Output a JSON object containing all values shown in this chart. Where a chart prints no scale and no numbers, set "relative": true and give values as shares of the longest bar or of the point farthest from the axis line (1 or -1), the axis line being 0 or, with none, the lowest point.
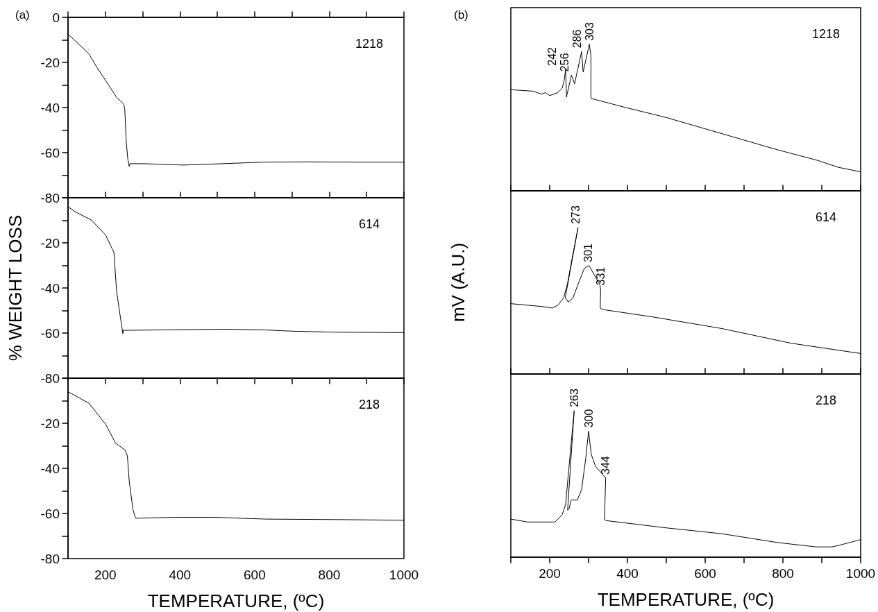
{
  "chart_data": [
    {
      "type": "line",
      "title": "(a)",
      "xlim": [
        100,
        1000
      ],
      "xticks": [
        {
          "value": 100,
          "label": null
        },
        200,
        {
          "value": 300,
          "label": null
        },
        400,
        {
          "value": 500,
          "label": null
        },
        600,
        {
          "value": 700,
          "label": null
        },
        800,
        {
          "value": 900,
          "label": null
        },
        1000
      ],
      "ylim": [
        -80,
        0
      ],
      "yticks": [
        0,
        {
          "value": -10,
          "label": null
        },
        -20,
        {
          "value": -30,
          "label": null
        },
        -40,
        {
          "value": -50,
          "label": null
        },
        -60,
        {
          "value": -70,
          "label": null
        },
        -80
      ],
      "tick_labels": "y",
      "marker": "none",
      "annotations": [
        "1218"
      ],
      "series": [
        {
          "color": "#000000",
          "x": [
            100,
            156,
            178,
            223,
            230,
            249,
            252,
            256,
            260,
            264,
            266,
            305,
            409,
            513,
            624,
            736,
            885,
            1000
          ],
          "values": [
            -7.4,
            -16.2,
            -22.3,
            -33.6,
            -35.5,
            -38.4,
            -40.5,
            -55,
            -62.6,
            -66.1,
            -64.9,
            -64.9,
            -65.5,
            -64.9,
            -64.2,
            -64.1,
            -64.2,
            -64.2
          ]
        }
      ]
    },
    {
      "type": "line",
      "ylabel": "% WEIGHT LOSS",
      "xlim": [
        100,
        1000
      ],
      "xticks": [
        {
          "value": 100,
          "label": null
        },
        200,
        {
          "value": 300,
          "label": null
        },
        400,
        {
          "value": 500,
          "label": null
        },
        600,
        {
          "value": 700,
          "label": null
        },
        800,
        {
          "value": 900,
          "label": null
        },
        1000
      ],
      "ylim": [
        -80,
        0
      ],
      "yticks": [
        {
          "value": 0,
          "label": null
        },
        {
          "value": -10,
          "label": null
        },
        -20,
        {
          "value": -30,
          "label": null
        },
        -40,
        {
          "value": -50,
          "label": null
        },
        -60,
        {
          "value": -70,
          "label": null
        },
        -80
      ],
      "tick_labels": "y",
      "marker": "none",
      "annotations": [
        "614"
      ],
      "series": [
        {
          "color": "#000000",
          "x": [
            100,
            119,
            163,
            201,
            219,
            223,
            230,
            241,
            247,
            248,
            349,
            513,
            624,
            706,
            811,
            1000
          ],
          "values": [
            -4.0,
            -6.2,
            -9.9,
            -16.6,
            -22.9,
            -24.2,
            -41.2,
            -53.8,
            -60.3,
            -58.8,
            -58.6,
            -58.3,
            -58.6,
            -59.2,
            -59.6,
            -59.8
          ]
        }
      ]
    },
    {
      "type": "line",
      "xlabel": "TEMPERATURE, (ºC)",
      "xlim": [
        100,
        1000
      ],
      "xticks": [
        {
          "value": 100,
          "label": null
        },
        200,
        {
          "value": 300,
          "label": null
        },
        400,
        {
          "value": 500,
          "label": null
        },
        600,
        {
          "value": 700,
          "label": null
        },
        800,
        {
          "value": 900,
          "label": null
        },
        1000
      ],
      "ylim": [
        -80,
        0
      ],
      "yticks": [
        {
          "value": 0,
          "label": null
        },
        {
          "value": -10,
          "label": null
        },
        -20,
        {
          "value": -30,
          "label": null
        },
        -40,
        {
          "value": -50,
          "label": null
        },
        -60,
        {
          "value": -70,
          "label": null
        },
        -80
      ],
      "marker": "none",
      "annotations": [
        "218"
      ],
      "series": [
        {
          "color": "#000000",
          "x": [
            100,
            156,
            201,
            227,
            253,
            259,
            264,
            274,
            281,
            394,
            491,
            632,
            811,
            1000
          ],
          "values": [
            -6.0,
            -11.1,
            -20.5,
            -28.7,
            -31.9,
            -34.4,
            -45.7,
            -58.3,
            -62.1,
            -61.7,
            -61.7,
            -62.5,
            -62.7,
            -63.0
          ]
        }
      ]
    },
    {
      "type": "line",
      "title": "(b)",
      "relative": true,
      "xlim": [
        100,
        1000
      ],
      "xticks": [
        {
          "value": 100,
          "label": null
        },
        200,
        {
          "value": 300,
          "label": null
        },
        400,
        {
          "value": 500,
          "label": null
        },
        600,
        {
          "value": 700,
          "label": null
        },
        800,
        {
          "value": 900,
          "label": null
        },
        1000
      ],
      "tick_labels": false,
      "marker": "none",
      "annotations": [
        "1218",
        {
          "text": "242",
          "x": 241,
          "y": 0.83
        },
        {
          "text": "256",
          "x": 256,
          "y": 0.79
        },
        {
          "text": "286",
          "x": 282,
          "y": 0.95
        },
        {
          "text": "303",
          "x": 302,
          "y": 1.0
        }
      ],
      "series": [
        {
          "color": "#000000",
          "x": [
            100,
            157,
            179,
            189,
            200,
            221,
            232,
            237,
            241,
            243,
            256,
            264,
            282,
            286,
            302,
            306,
            306,
            307,
            393,
            500,
            643,
            786,
            886,
            943,
            1000
          ],
          "values": [
            0.69,
            0.68,
            0.66,
            0.67,
            0.65,
            0.67,
            0.7,
            0.75,
            0.83,
            0.64,
            0.79,
            0.73,
            0.95,
            0.81,
            1.0,
            0.92,
            0.64,
            0.63,
            0.57,
            0.5,
            0.39,
            0.28,
            0.21,
            0.16,
            0.13
          ]
        }
      ]
    },
    {
      "type": "line",
      "ylabel": "mV (A.U.)",
      "relative": true,
      "xlim": [
        100,
        1000
      ],
      "xticks": [
        {
          "value": 100,
          "label": null
        },
        200,
        {
          "value": 300,
          "label": null
        },
        400,
        {
          "value": 500,
          "label": null
        },
        600,
        {
          "value": 700,
          "label": null
        },
        800,
        {
          "value": 900,
          "label": null
        },
        1000
      ],
      "tick_labels": false,
      "marker": "none",
      "annotations": [
        "614",
        {
          "text": "273",
          "x": 273,
          "y": 1.0
        },
        {
          "text": "301",
          "x": 301,
          "y": 0.74
        },
        {
          "text": "331",
          "x": 331,
          "y": 0.58
        }
      ],
      "series": [
        {
          "color": "#000000",
          "x": [
            100,
            182,
            207,
            221,
            236,
            246,
            257,
            273,
            240,
            243,
            248,
            260,
            274,
            289,
            301,
            314,
            329,
            331,
            330,
            336,
            464,
            643,
            821,
            1000
          ],
          "values": [
            0.48,
            0.46,
            0.45,
            0.47,
            0.52,
            0.62,
            0.78,
            1.0,
            0.52,
            0.51,
            0.49,
            0.52,
            0.62,
            0.72,
            0.74,
            0.68,
            0.61,
            0.58,
            0.45,
            0.44,
            0.39,
            0.31,
            0.21,
            0.14
          ]
        }
      ]
    },
    {
      "type": "line",
      "xlabel": "TEMPERATURE, (ºC)",
      "relative": true,
      "xlim": [
        100,
        1000
      ],
      "xticks": [
        {
          "value": 100,
          "label": null
        },
        200,
        {
          "value": 300,
          "label": null
        },
        400,
        {
          "value": 500,
          "label": null
        },
        600,
        {
          "value": 700,
          "label": null
        },
        800,
        {
          "value": 900,
          "label": null
        },
        1000
      ],
      "tick_labels": "x",
      "marker": "none",
      "annotations": [
        "218",
        {
          "text": "263",
          "x": 263,
          "y": 1.0
        },
        {
          "text": "300",
          "x": 300,
          "y": 0.86
        },
        {
          "text": "344",
          "x": 344,
          "y": 0.54
        }
      ],
      "series": [
        {
          "color": "#000000",
          "x": [
            100,
            143,
            214,
            232,
            241,
            246,
            263,
            246,
            250,
            255,
            271,
            282,
            293,
            300,
            307,
            318,
            341,
            344,
            341,
            344,
            500,
            643,
            786,
            886,
            925,
            943,
            1000
          ],
          "values": [
            0.26,
            0.24,
            0.24,
            0.29,
            0.36,
            0.51,
            1.0,
            0.32,
            0.33,
            0.39,
            0.39,
            0.46,
            0.68,
            0.86,
            0.7,
            0.62,
            0.55,
            0.54,
            0.26,
            0.25,
            0.2,
            0.16,
            0.1,
            0.07,
            0.07,
            0.08,
            0.12
          ]
        }
      ]
    }
  ]
}
